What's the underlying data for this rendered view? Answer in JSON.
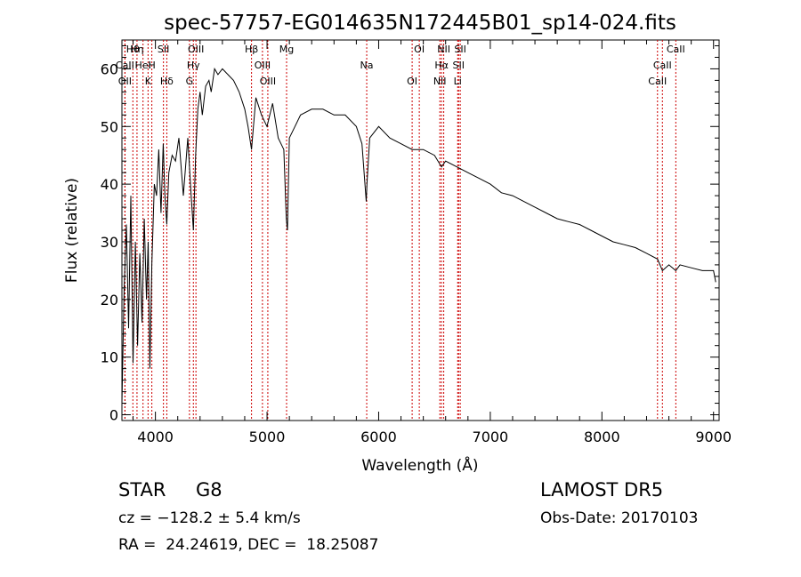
{
  "chart_data": {
    "type": "line",
    "title": "spec-57757-EG014635N172445B01_sp14-024.fits",
    "xlabel": "Wavelength (Å)",
    "ylabel": "Flux (relative)",
    "xlim": [
      3700,
      9050
    ],
    "ylim": [
      -1,
      65
    ],
    "xticks": [
      4000,
      5000,
      6000,
      7000,
      8000,
      9000
    ],
    "yticks": [
      0,
      10,
      20,
      30,
      40,
      50,
      60
    ],
    "grid": false,
    "series": [
      {
        "x": [
          3700,
          3720,
          3740,
          3760,
          3780,
          3800,
          3820,
          3840,
          3860,
          3880,
          3900,
          3920,
          3935,
          3950,
          3968,
          3990,
          4010,
          4030,
          4050,
          4070,
          4085,
          4102,
          4120,
          4150,
          4180,
          4210,
          4250,
          4290,
          4320,
          4340,
          4360,
          4380,
          4400,
          4420,
          4450,
          4480,
          4500,
          4530,
          4560,
          4600,
          4650,
          4700,
          4750,
          4800,
          4830,
          4861,
          4900,
          4950,
          5000,
          5050,
          5100,
          5150,
          5173,
          5183,
          5200,
          5250,
          5300,
          5400,
          5500,
          5600,
          5700,
          5800,
          5850,
          5889,
          5895,
          5920,
          6000,
          6100,
          6200,
          6300,
          6400,
          6500,
          6563,
          6600,
          6700,
          6800,
          6900,
          7000,
          7100,
          7200,
          7300,
          7400,
          7500,
          7600,
          7700,
          7800,
          7900,
          8000,
          8100,
          8200,
          8300,
          8400,
          8498,
          8542,
          8600,
          8662,
          8700,
          8800,
          8900,
          9000,
          9020
        ],
        "y": [
          2,
          22,
          33,
          15,
          38,
          9,
          30,
          12,
          28,
          16,
          34,
          20,
          30,
          8,
          26,
          40,
          38,
          46,
          35,
          47,
          38,
          33,
          42,
          45,
          44,
          48,
          38,
          48,
          38,
          32,
          45,
          53,
          56,
          52,
          57,
          58,
          56,
          60,
          59,
          60,
          59,
          58,
          56,
          53,
          50,
          46,
          55,
          52,
          50,
          54,
          48,
          46,
          34,
          32,
          48,
          50,
          52,
          53,
          53,
          52,
          52,
          50,
          47,
          37,
          40,
          48,
          50,
          48,
          47,
          46,
          46,
          45,
          43,
          44,
          43,
          42,
          41,
          40,
          38.5,
          38,
          37,
          36,
          35,
          34,
          33.5,
          33,
          32,
          31,
          30,
          29.5,
          29,
          28,
          27,
          25,
          26,
          25,
          26,
          25.5,
          25,
          25,
          23
        ]
      }
    ],
    "lines": [
      {
        "label": "Hθ",
        "x": 3798
      },
      {
        "label": "CaII",
        "x": 3727
      },
      {
        "label": "OII",
        "x": 3727
      },
      {
        "label": "Hη",
        "x": 3835
      },
      {
        "label": "HeI",
        "x": 3889
      },
      {
        "label": "K",
        "x": 3934
      },
      {
        "label": "SII",
        "x": 4072
      },
      {
        "label": "H",
        "x": 3968
      },
      {
        "label": "Hδ",
        "x": 4102
      },
      {
        "label": "OIII",
        "x": 4363
      },
      {
        "label": "Hγ",
        "x": 4340
      },
      {
        "label": "G",
        "x": 4305
      },
      {
        "label": "Hβ",
        "x": 4861
      },
      {
        "label": "OIII",
        "x": 4959
      },
      {
        "label": "OIII",
        "x": 5007
      },
      {
        "label": "Mg",
        "x": 5175
      },
      {
        "label": "Na",
        "x": 5893
      },
      {
        "label": "OI",
        "x": 6300
      },
      {
        "label": "OI",
        "x": 6364
      },
      {
        "label": "Hα",
        "x": 6563
      },
      {
        "label": "NII",
        "x": 6548
      },
      {
        "label": "NII",
        "x": 6583
      },
      {
        "label": "SII",
        "x": 6716
      },
      {
        "label": "Li",
        "x": 6708
      },
      {
        "label": "SII",
        "x": 6731
      },
      {
        "label": "CaII",
        "x": 8542
      },
      {
        "label": "CaII",
        "x": 8498
      },
      {
        "label": "CaII",
        "x": 8662
      }
    ],
    "line_color": "#000000",
    "marker_line_color": "#cc0000"
  },
  "info": {
    "class": "STAR",
    "subclass": "G8",
    "survey": "LAMOST DR5",
    "velocity": "cz = −128.2 ± 5.4 km/s",
    "obs_date": "Obs-Date: 20170103",
    "coords": "RA =  24.24619, DEC =  18.25087"
  }
}
